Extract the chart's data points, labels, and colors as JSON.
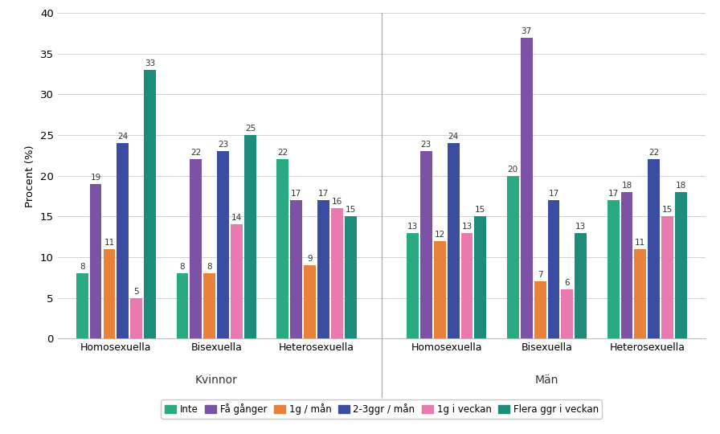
{
  "groups": [
    "Homosexuella",
    "Bisexuella",
    "Heterosexuella",
    "Homosexuella",
    "Bisexuella",
    "Heterosexuella"
  ],
  "section_labels": [
    "Kvinnor",
    "Män"
  ],
  "series_labels": [
    "Inte",
    "Få gånger",
    "1g / mån",
    "2-3ggr / mån",
    "1g i veckan",
    "Flera ggr i veckan"
  ],
  "series_colors": [
    "#2aaa82",
    "#7b52a6",
    "#e8813a",
    "#3b4da0",
    "#e87aaf",
    "#1e8c7a"
  ],
  "data": [
    [
      8,
      8,
      22,
      13,
      20,
      17
    ],
    [
      19,
      22,
      17,
      23,
      37,
      18
    ],
    [
      11,
      8,
      9,
      12,
      7,
      11
    ],
    [
      24,
      23,
      17,
      24,
      17,
      22
    ],
    [
      5,
      14,
      16,
      13,
      6,
      15
    ],
    [
      33,
      25,
      15,
      15,
      13,
      18
    ]
  ],
  "ylabel": "Procent (%)",
  "ylim": [
    0,
    40
  ],
  "yticks": [
    0,
    5,
    10,
    15,
    20,
    25,
    30,
    35,
    40
  ],
  "bar_width": 0.115,
  "background_color": "#ffffff",
  "grid_color": "#d0d0d0",
  "label_fontsize": 7.5,
  "axis_fontsize": 9.5,
  "legend_fontsize": 8.5,
  "section_fontsize": 10
}
